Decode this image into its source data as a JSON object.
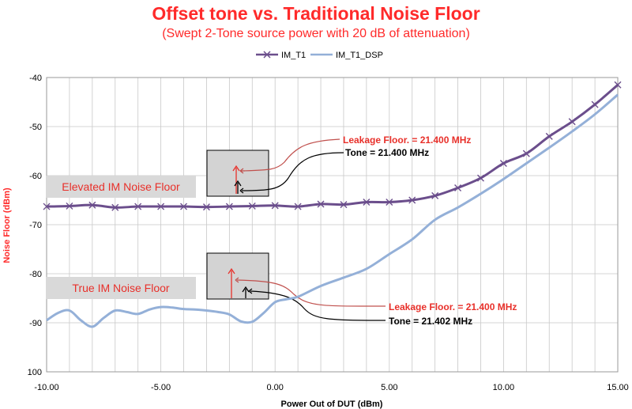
{
  "chart_data": {
    "type": "line",
    "title": "Offset tone vs. Traditional Noise Floor",
    "subtitle": "(Swept 2-Tone source power with 20 dB of attenuation)",
    "xlabel": "Power  Out of DUT (dBm)",
    "ylabel": "Noise Floor (dBm)",
    "xlim": [
      -10,
      15
    ],
    "ylim": [
      -100,
      -40
    ],
    "xticks": [
      "-10.00",
      "-5.00",
      "0.00",
      "5.00",
      "10.00",
      "15.00"
    ],
    "yticks": [
      "-40",
      "-50",
      "-60",
      "-70",
      "-80",
      "-90",
      "100"
    ],
    "grid": "on",
    "legend_position": "top-center",
    "series": [
      {
        "name": "IM_T1",
        "color": "#6b4e8c",
        "marker": "x",
        "x": [
          -10,
          -9,
          -8,
          -7,
          -6,
          -5,
          -4,
          -3,
          -2,
          -1,
          0,
          1,
          2,
          3,
          4,
          5,
          6,
          7,
          8,
          9,
          10,
          11,
          12,
          13,
          14,
          15
        ],
        "y": [
          -66.3,
          -66.2,
          -66.0,
          -66.5,
          -66.3,
          -66.3,
          -66.3,
          -66.4,
          -66.3,
          -66.2,
          -66.1,
          -66.3,
          -65.8,
          -65.9,
          -65.4,
          -65.4,
          -65.0,
          -64.1,
          -62.5,
          -60.5,
          -57.5,
          -55.5,
          -52.0,
          -49.0,
          -45.5,
          -41.5
        ]
      },
      {
        "name": "IM_T1_DSP",
        "color": "#94b0d8",
        "marker": "none",
        "x": [
          -10,
          -9.5,
          -9,
          -8.5,
          -8,
          -7.5,
          -7,
          -6.5,
          -6,
          -5.5,
          -5,
          -4.5,
          -4,
          -3.5,
          -3,
          -2.5,
          -2,
          -1.5,
          -1,
          -0.5,
          0,
          0.5,
          1,
          2,
          3,
          4,
          5,
          6,
          7,
          8,
          9,
          10,
          11,
          12,
          13,
          14,
          15
        ],
        "y": [
          -89.5,
          -88.0,
          -87.5,
          -89.5,
          -90.8,
          -89.0,
          -87.5,
          -87.8,
          -88.2,
          -87.3,
          -86.8,
          -86.9,
          -87.2,
          -87.3,
          -87.5,
          -87.8,
          -88.3,
          -89.7,
          -89.8,
          -88.0,
          -85.8,
          -85.2,
          -84.7,
          -82.5,
          -80.8,
          -79.0,
          -76.0,
          -73.0,
          -69.0,
          -66.5,
          -63.7,
          -60.7,
          -57.5,
          -54.3,
          -51.0,
          -47.5,
          -43.5
        ]
      }
    ],
    "annotations": {
      "upper_box_label": "Elevated IM Noise Floor",
      "lower_box_label": "True IM Noise Floor",
      "upper_leakage": "Leakage Floor. = 21.400 MHz",
      "upper_tone": "Tone = 21.400 MHz",
      "lower_leakage": "Leakage Floor. = 21.400 MHz",
      "lower_tone": "Tone = 21.402 MHz",
      "leakage_color": "#e8302a",
      "tone_color": "#000000",
      "label_box_color": "#d9d9d9"
    }
  }
}
